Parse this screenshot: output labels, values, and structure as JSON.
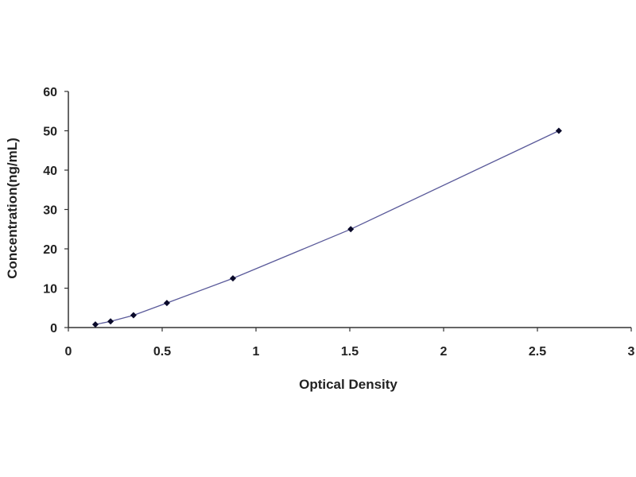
{
  "chart_data": {
    "type": "scatter",
    "title": "",
    "xlabel": "Optical Density",
    "ylabel": "Concentration(ng/mL)",
    "xlim": [
      0,
      3
    ],
    "ylim": [
      0,
      60
    ],
    "xticks": [
      "0",
      "0.5",
      "1",
      "1.5",
      "2",
      "2.5",
      "3"
    ],
    "yticks": [
      "0",
      "10",
      "20",
      "30",
      "40",
      "50",
      "60"
    ],
    "grid": false,
    "legend": "none",
    "trendline": true,
    "series": [
      {
        "x": [
          0.144,
          0.225,
          0.347,
          0.525,
          0.877,
          1.505,
          2.614
        ],
        "y": [
          0.78,
          1.56,
          3.12,
          6.25,
          12.5,
          25,
          50
        ],
        "marker_color": "#0a0a2a",
        "line_color": "#5a5a9a"
      }
    ]
  }
}
